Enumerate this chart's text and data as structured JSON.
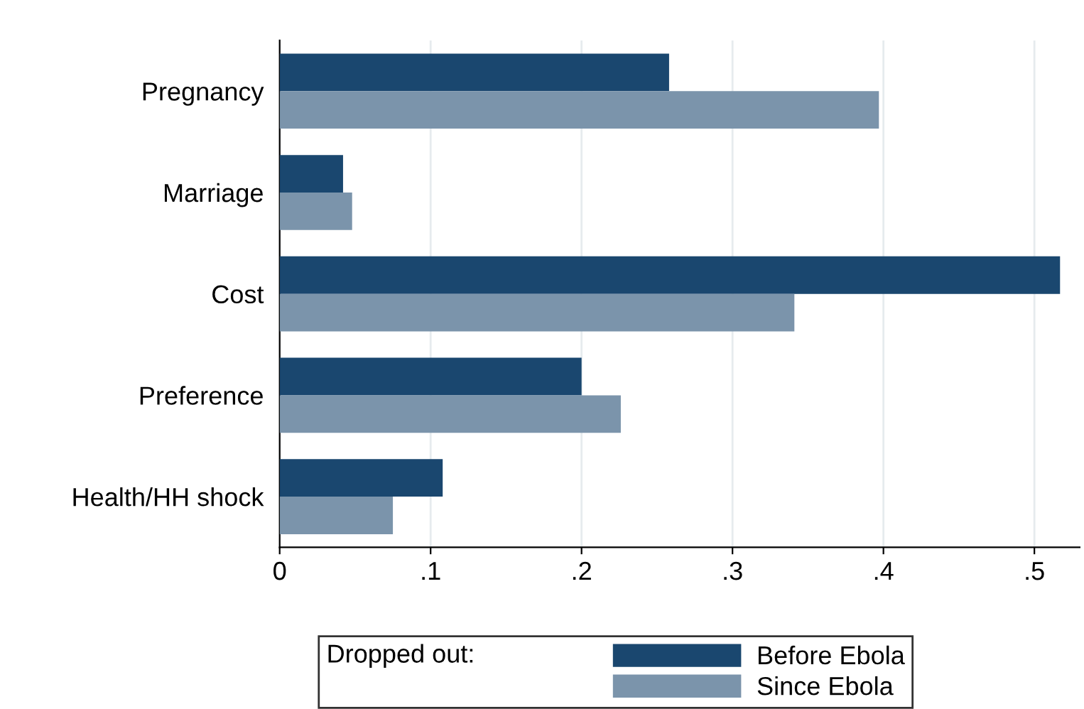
{
  "chart_data": {
    "type": "bar",
    "orientation": "horizontal",
    "categories": [
      "Pregnancy",
      "Marriage",
      "Cost",
      "Preference",
      "Health/HH shock"
    ],
    "series": [
      {
        "name": "Before Ebola",
        "color": "#1a476f",
        "values": [
          0.258,
          0.042,
          0.517,
          0.2,
          0.108
        ]
      },
      {
        "name": "Since Ebola",
        "color": "#7b94ab",
        "values": [
          0.397,
          0.048,
          0.341,
          0.226,
          0.075
        ]
      }
    ],
    "xlim": [
      0,
      0.53
    ],
    "xticks": [
      0,
      {
        "value": 0.1,
        "label": ".1"
      },
      {
        "value": 0.2,
        "label": ".2"
      },
      {
        "value": 0.3,
        "label": ".3"
      },
      {
        "value": 0.4,
        "label": ".4"
      },
      {
        "value": 0.5,
        "label": ".5"
      }
    ],
    "grid": "x",
    "legend": "bottom",
    "legend_title": "Dropped out:"
  }
}
